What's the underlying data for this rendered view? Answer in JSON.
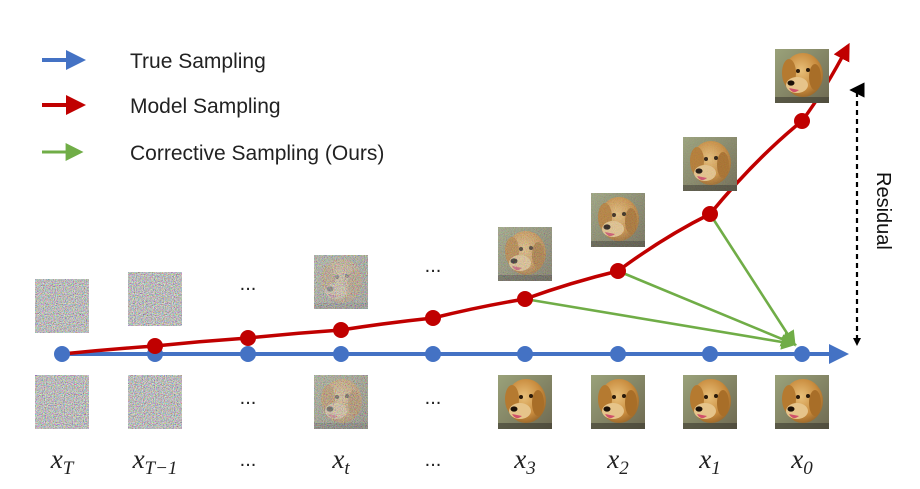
{
  "legend": {
    "items": [
      {
        "label": "True Sampling",
        "color": "#4472C4"
      },
      {
        "label": "Model Sampling",
        "color": "#C00000"
      },
      {
        "label": "Corrective Sampling (Ours)",
        "color": "#70AD47"
      }
    ]
  },
  "residual_label": "Residual",
  "ellipsis": "...",
  "steps": [
    {
      "base": "x",
      "sub": "T",
      "top_image": "noise",
      "bottom_image": "noise",
      "noise_top": 1.0,
      "noise_bottom": 1.0,
      "model_dot": false
    },
    {
      "base": "x",
      "sub": "T−1",
      "top_image": "noise",
      "bottom_image": "noise",
      "noise_top": 0.95,
      "noise_bottom": 0.95,
      "model_dot": true
    },
    {
      "base": "...",
      "sub": "",
      "top_image": "none",
      "bottom_image": "none",
      "noise_top": 0,
      "noise_bottom": 0,
      "model_dot": true
    },
    {
      "base": "x",
      "sub": "t",
      "top_image": "noisy-dog",
      "bottom_image": "noisy-dog",
      "noise_top": 0.75,
      "noise_bottom": 0.6,
      "model_dot": true
    },
    {
      "base": "...",
      "sub": "",
      "top_image": "none",
      "bottom_image": "none",
      "noise_top": 0,
      "noise_bottom": 0,
      "model_dot": true
    },
    {
      "base": "x",
      "sub": "3",
      "top_image": "noisy-dog",
      "bottom_image": "dog",
      "noise_top": 0.35,
      "noise_bottom": 0.0,
      "model_dot": true
    },
    {
      "base": "x",
      "sub": "2",
      "top_image": "noisy-dog",
      "bottom_image": "dog",
      "noise_top": 0.2,
      "noise_bottom": 0.0,
      "model_dot": true
    },
    {
      "base": "x",
      "sub": "1",
      "top_image": "noisy-dog",
      "bottom_image": "dog",
      "noise_top": 0.1,
      "noise_bottom": 0.0,
      "model_dot": true
    },
    {
      "base": "x",
      "sub": "0",
      "top_image": "dog",
      "bottom_image": "dog",
      "noise_top": 0.0,
      "noise_bottom": 0.0,
      "model_dot": true
    }
  ]
}
